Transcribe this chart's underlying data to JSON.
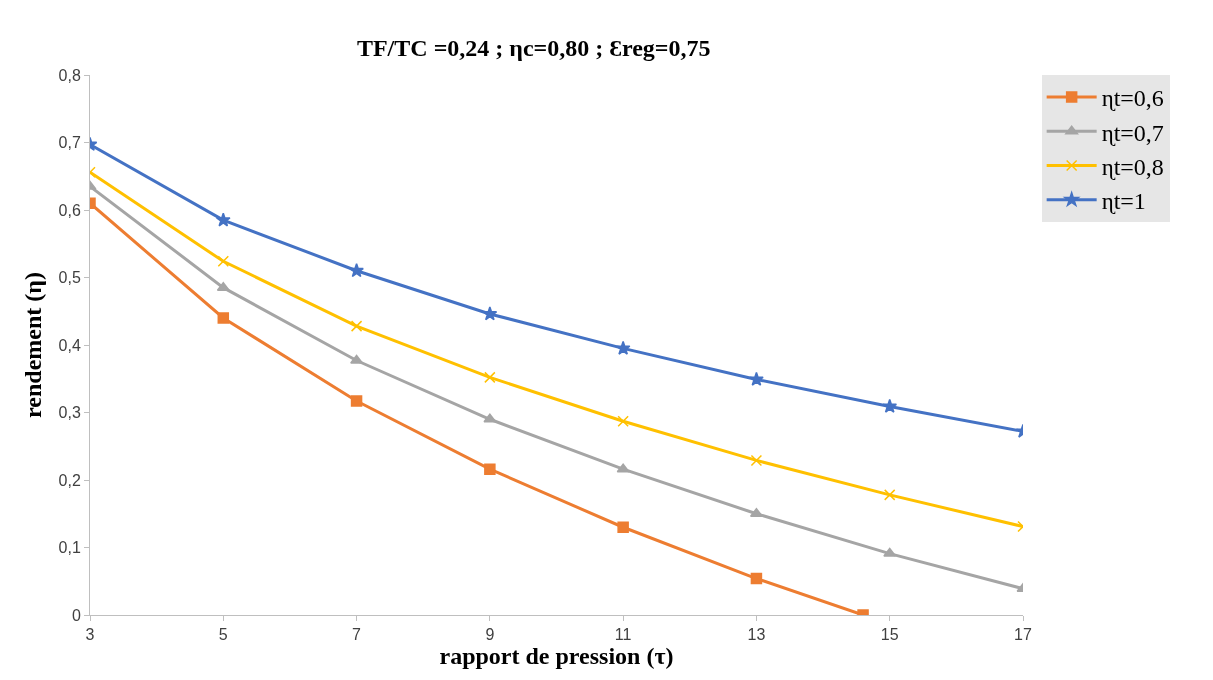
{
  "chart_data": {
    "type": "line",
    "title": "TF/TC =0,24 ; ηc=0,80 ; Ɛreg=0,75",
    "xlabel": "rapport de pression (τ)",
    "ylabel": "rendement (η)",
    "x": [
      3,
      5,
      7,
      9,
      11,
      13,
      15,
      17
    ],
    "series": [
      {
        "name": "ɳt=0,6",
        "color": "#ed7d31",
        "marker": "square",
        "x": [
          3,
          5,
          7,
          9,
          11,
          13,
          14.6
        ],
        "values": [
          0.61,
          0.44,
          0.317,
          0.216,
          0.13,
          0.054,
          0
        ]
      },
      {
        "name": "ɳt=0,7",
        "color": "#a5a5a5",
        "marker": "triangle",
        "values": [
          0.635,
          0.485,
          0.377,
          0.29,
          0.216,
          0.15,
          0.091,
          0.039
        ]
      },
      {
        "name": "ɳt=0,8",
        "color": "#ffc000",
        "marker": "cross",
        "values": [
          0.656,
          0.524,
          0.428,
          0.352,
          0.287,
          0.229,
          0.178,
          0.131
        ]
      },
      {
        "name": "ɳt=1",
        "color": "#4472c4",
        "marker": "star",
        "values": [
          0.697,
          0.585,
          0.51,
          0.446,
          0.395,
          0.349,
          0.309,
          0.272
        ]
      }
    ],
    "xlim": [
      3,
      17
    ],
    "xticks": [
      3,
      5,
      7,
      9,
      11,
      13,
      15,
      17
    ],
    "ylim": [
      0,
      0.8
    ],
    "yticks": [
      0,
      {
        "value": 0.1,
        "label": "0,1"
      },
      {
        "value": 0.2,
        "label": "0,2"
      },
      {
        "value": 0.3,
        "label": "0,3"
      },
      {
        "value": 0.4,
        "label": "0,4"
      },
      {
        "value": 0.5,
        "label": "0,5"
      },
      {
        "value": 0.6,
        "label": "0,6"
      },
      {
        "value": 0.7,
        "label": "0,7"
      },
      {
        "value": 0.8,
        "label": "0,8"
      }
    ],
    "legend": "top right",
    "line_style": "solid"
  }
}
